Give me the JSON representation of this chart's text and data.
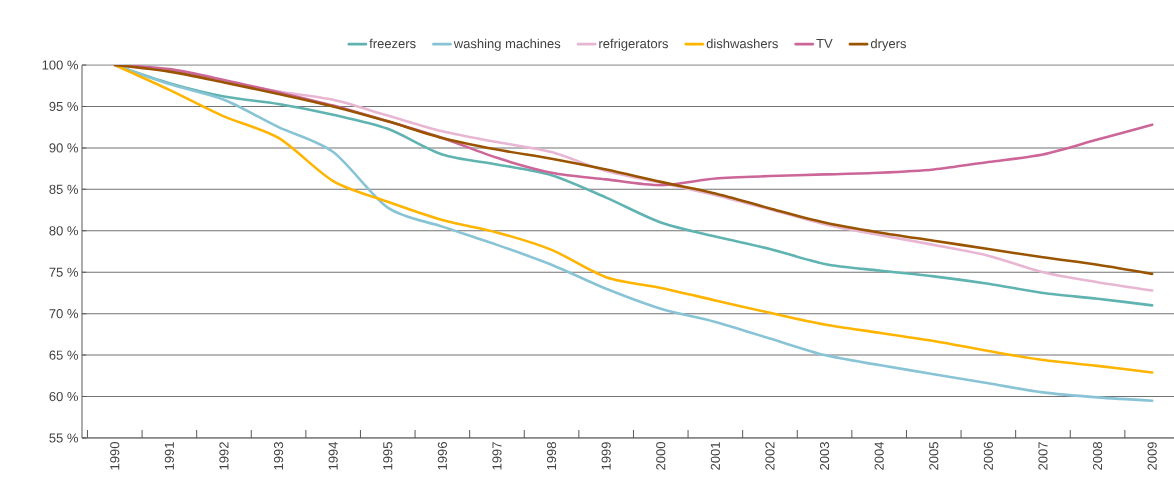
{
  "chart_data": {
    "type": "line",
    "categories": [
      "1990",
      "1991",
      "1992",
      "1993",
      "1994",
      "1995",
      "1996",
      "1997",
      "1998",
      "1999",
      "2000",
      "2001",
      "2002",
      "2003",
      "2004",
      "2005",
      "2006",
      "2007",
      "2008",
      "2009"
    ],
    "series": [
      {
        "name": "freezers",
        "color": "#5fb3b0",
        "values": [
          100,
          97.8,
          96.2,
          95.3,
          94,
          92.3,
          89.2,
          88,
          86.7,
          84,
          81,
          79.3,
          77.8,
          76,
          75.2,
          74.5,
          73.6,
          72.5,
          71.8,
          71
        ]
      },
      {
        "name": "washing machines",
        "color": "#88c4d6",
        "values": [
          100,
          97.7,
          95.8,
          92.5,
          89.5,
          82.8,
          80.5,
          78.3,
          75.9,
          73,
          70.6,
          69,
          67,
          65,
          63.8,
          62.7,
          61.6,
          60.5,
          59.9,
          59.5
        ]
      },
      {
        "name": "refrigerators",
        "color": "#e8b6d3",
        "values": [
          100,
          99.3,
          98,
          96.8,
          95.8,
          93.9,
          92,
          90.7,
          89.5,
          87.2,
          85.8,
          84.3,
          82.6,
          80.8,
          79.5,
          78.3,
          77,
          75,
          73.8,
          72.8
        ]
      },
      {
        "name": "dishwashers",
        "color": "#ffb400",
        "values": [
          100,
          97,
          93.8,
          91.2,
          86,
          83.5,
          81.3,
          79.8,
          77.7,
          74.4,
          73.1,
          71.6,
          70.1,
          68.7,
          67.7,
          66.7,
          65.5,
          64.4,
          63.7,
          62.9
        ]
      },
      {
        "name": "TV",
        "color": "#cc6699",
        "values": [
          100,
          99.5,
          98.2,
          96.7,
          95.1,
          93.2,
          91.2,
          88.8,
          87,
          86.2,
          85.5,
          86.3,
          86.6,
          86.8,
          87,
          87.4,
          88.3,
          89.2,
          91,
          92.8
        ]
      },
      {
        "name": "dryers",
        "color": "#9a5400",
        "values": [
          100,
          99.2,
          97.9,
          96.5,
          95,
          93.2,
          91.2,
          89.8,
          88.7,
          87.4,
          85.9,
          84.5,
          82.7,
          81,
          79.8,
          78.8,
          77.8,
          76.8,
          75.9,
          74.8
        ]
      }
    ],
    "ylim": [
      55,
      100
    ],
    "yticks": [
      {
        "value": 55,
        "label": "55 %"
      },
      {
        "value": 60,
        "label": "60 %"
      },
      {
        "value": 65,
        "label": "65 %"
      },
      {
        "value": 70,
        "label": "70 %"
      },
      {
        "value": 75,
        "label": "75 %"
      },
      {
        "value": 80,
        "label": "80 %"
      },
      {
        "value": 85,
        "label": "85 %"
      },
      {
        "value": 90,
        "label": "90 %"
      },
      {
        "value": 95,
        "label": "95 %"
      },
      {
        "value": 100,
        "label": "100 %"
      }
    ],
    "grid": "y",
    "legend": "top",
    "line_style": "solid",
    "marker": "none"
  }
}
